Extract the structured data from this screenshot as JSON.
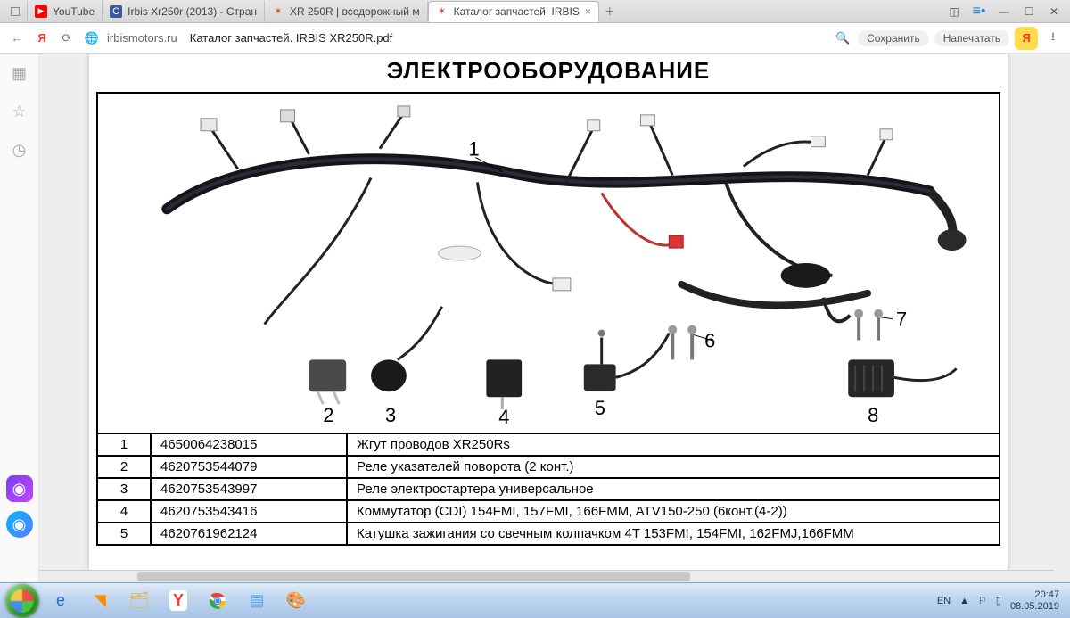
{
  "tabs": [
    {
      "label": "",
      "favColor": "#555"
    },
    {
      "label": "YouTube",
      "favColor": "#ff0000"
    },
    {
      "label": "Irbis Xr250r (2013) - Стран",
      "favColor": "#3b5998"
    },
    {
      "label": "XR 250R | вседорожный м",
      "favColor": "#d94f2a"
    },
    {
      "label": "Каталог запчастей. IRBIS",
      "favColor": "#d94f2a",
      "active": true
    }
  ],
  "address": {
    "domain": "irbismotors.ru",
    "path": "Каталог запчастей. IRBIS XR250R.pdf"
  },
  "navActions": {
    "save": "Сохранить",
    "print": "Напечатать"
  },
  "docTitle": "ЭЛЕКТРООБОРУДОВАНИЕ",
  "diagram": {
    "callouts": [
      "1",
      "2",
      "3",
      "4",
      "5",
      "6",
      "7",
      "8"
    ]
  },
  "rows": [
    {
      "n": "1",
      "code": "4650064238015",
      "desc": "Жгут проводов XR250Rs"
    },
    {
      "n": "2",
      "code": "4620753544079",
      "desc": "Реле указателей поворота (2 конт.)"
    },
    {
      "n": "3",
      "code": "4620753543997",
      "desc": "Реле электростартера универсальное"
    },
    {
      "n": "4",
      "code": "4620753543416",
      "desc": "Коммутатор (CDI) 154FMI, 157FMI, 166FMM, ATV150-250 (6конт.(4-2))"
    },
    {
      "n": "5",
      "code": "4620761962124",
      "desc": "Катушка зажигания со свечным колпачком 4T 153FMI, 154FMI, 162FMJ,166FMM"
    }
  ],
  "tray": {
    "lang": "EN",
    "time": "20:47",
    "date": "08.05.2019"
  }
}
